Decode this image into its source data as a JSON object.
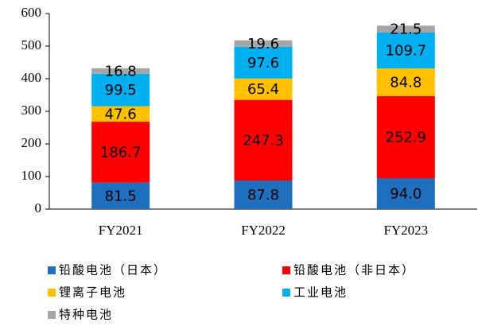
{
  "chart_data": {
    "type": "stacked_bar",
    "categories": [
      "FY2021",
      "FY2022",
      "FY2023"
    ],
    "series": [
      {
        "name": "铅酸电池（日本）",
        "color": "#1f6fbf",
        "values": [
          81.5,
          87.8,
          94
        ],
        "value_labels": [
          "81.5",
          "87.8",
          "94.0"
        ]
      },
      {
        "name": "铅酸电池（非日本）",
        "color": "#ff0000",
        "values": [
          186.7,
          247.3,
          252.9
        ]
      },
      {
        "name": "锂离子电池",
        "color": "#ffc000",
        "values": [
          47.6,
          65.4,
          84.8
        ]
      },
      {
        "name": "工业电池",
        "color": "#00b0f0",
        "values": [
          99.5,
          97.6,
          109.7
        ]
      },
      {
        "name": "特种电池",
        "color": "#a5a5a5",
        "values": [
          16.8,
          19.6,
          21.5
        ]
      }
    ],
    "ylim": [
      0,
      600
    ],
    "yticks": [
      0,
      100,
      200,
      300,
      400,
      500,
      600
    ],
    "grid": false,
    "legend": "bottom"
  }
}
